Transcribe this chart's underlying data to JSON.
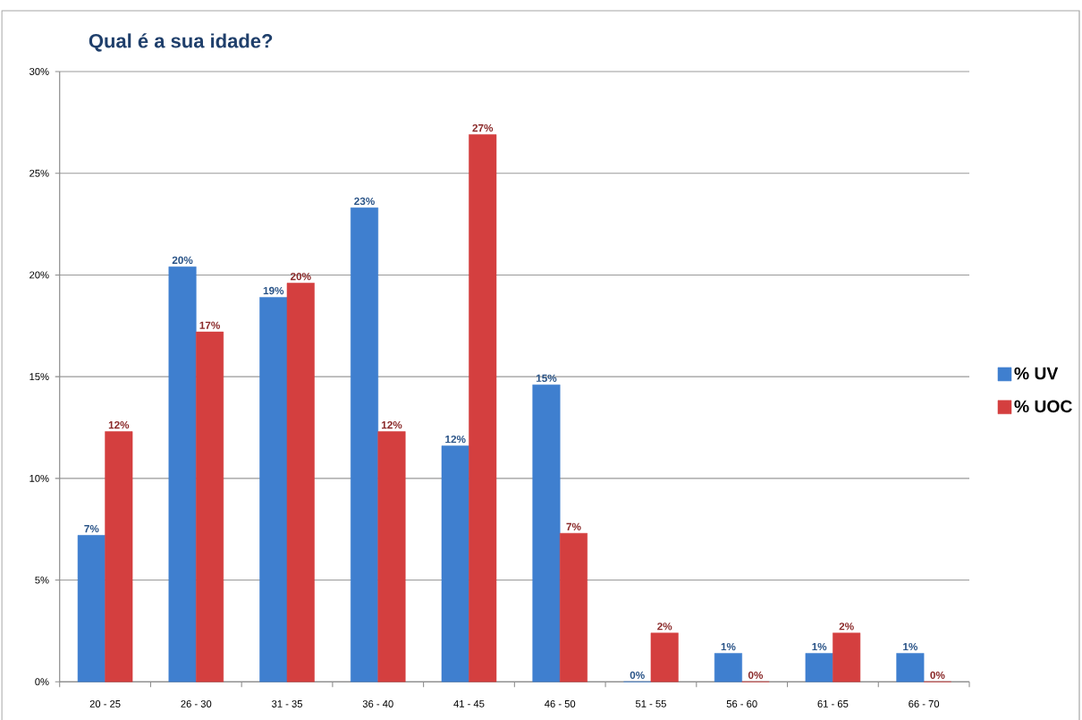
{
  "chart_data": {
    "type": "bar",
    "title": "Qual é a sua idade?",
    "categories": [
      "20 - 25",
      "26 - 30",
      "31 - 35",
      "36 - 40",
      "41 - 45",
      "46 - 50",
      "51 - 55",
      "56 - 60",
      "61 - 65",
      "66 - 70"
    ],
    "series": [
      {
        "name": "% UV",
        "color": "#3f7fcf",
        "values": [
          7.2,
          20.4,
          18.9,
          23.3,
          11.6,
          14.6,
          0,
          1.4,
          1.4,
          1.4
        ],
        "value_labels": [
          "7%",
          "20%",
          "19%",
          "23%",
          "12%",
          "15%",
          "0%",
          "1%",
          "1%",
          "1%"
        ]
      },
      {
        "name": "% UOC",
        "color": "#d43f3f",
        "values": [
          12.3,
          17.2,
          19.6,
          12.3,
          26.9,
          7.3,
          2.4,
          0,
          2.4,
          0
        ],
        "value_labels": [
          "12%",
          "17%",
          "20%",
          "12%",
          "27%",
          "7%",
          "2%",
          "0%",
          "2%",
          "0%"
        ]
      }
    ],
    "ylim": [
      0,
      30
    ],
    "yticks": [
      {
        "value": 0,
        "label": "0%"
      },
      {
        "value": 5,
        "label": "5%"
      },
      {
        "value": 10,
        "label": "10%"
      },
      {
        "value": 15,
        "label": "15%"
      },
      {
        "value": 20,
        "label": "20%"
      },
      {
        "value": 25,
        "label": "25%"
      },
      {
        "value": 30,
        "label": "30%"
      }
    ],
    "grid": "y",
    "legend": "right"
  }
}
